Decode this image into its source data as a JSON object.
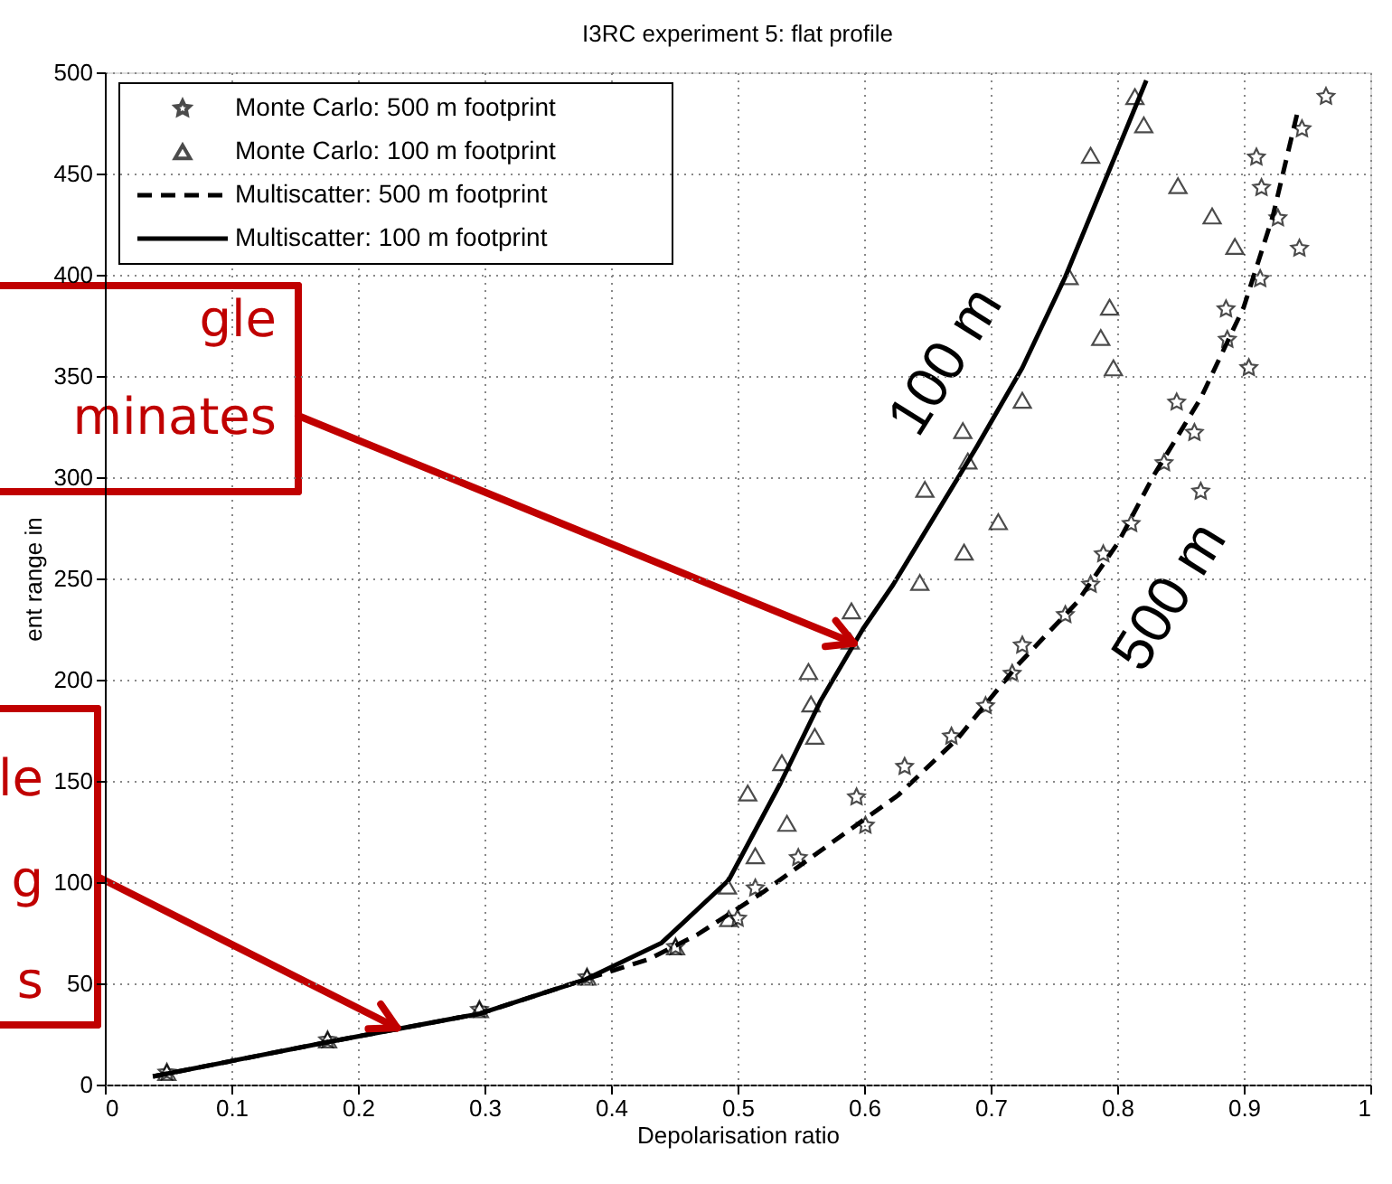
{
  "chart_data": {
    "type": "line",
    "title": "I3RC experiment 5: flat profile",
    "xlabel": "Depolarisation ratio",
    "ylabel": "ent range in",
    "xlim": [
      0,
      1
    ],
    "ylim": [
      0,
      500
    ],
    "xticks": [
      0,
      0.1,
      0.2,
      0.3,
      0.4,
      0.5,
      0.6,
      0.7,
      0.8,
      0.9,
      1
    ],
    "yticks": [
      0,
      50,
      100,
      150,
      200,
      250,
      300,
      350,
      400,
      450,
      500
    ],
    "grid": true,
    "legend": "top left",
    "series": [
      {
        "name": "Monte Carlo: 500 m footprint",
        "type": "scatter",
        "marker": "star",
        "color": "#000000",
        "x": [
          0.049,
          0.176,
          0.296,
          0.381,
          0.451,
          0.5,
          0.514,
          0.548,
          0.601,
          0.594,
          0.632,
          0.669,
          0.696,
          0.717,
          0.725,
          0.759,
          0.779,
          0.789,
          0.811,
          0.866,
          0.837,
          0.861,
          0.847,
          0.904,
          0.887,
          0.886,
          0.913,
          0.944,
          0.927,
          0.914,
          0.91,
          0.946,
          0.965
        ],
        "values": [
          6,
          22,
          37,
          53,
          68,
          82,
          97,
          112,
          128,
          142,
          157,
          172,
          187,
          203,
          217,
          232,
          247,
          262,
          277,
          293,
          307,
          322,
          337,
          354,
          368,
          383,
          398,
          413,
          428,
          443,
          458,
          472,
          488
        ]
      },
      {
        "name": "Monte Carlo: 100 m footprint",
        "type": "scatter",
        "marker": "triangle",
        "color": "#000000",
        "x": [
          0.049,
          0.176,
          0.296,
          0.381,
          0.451,
          0.493,
          0.492,
          0.514,
          0.539,
          0.508,
          0.535,
          0.561,
          0.558,
          0.556,
          0.589,
          0.59,
          0.644,
          0.679,
          0.706,
          0.648,
          0.682,
          0.678,
          0.725,
          0.797,
          0.787,
          0.794,
          0.762,
          0.893,
          0.875,
          0.848,
          0.779,
          0.821,
          0.814
        ],
        "values": [
          6,
          22,
          37,
          53,
          68,
          82,
          98,
          113,
          129,
          144,
          159,
          172,
          188,
          204,
          219,
          234,
          248,
          263,
          278,
          294,
          308,
          323,
          338,
          354,
          369,
          384,
          399,
          414,
          429,
          444,
          459,
          474,
          488
        ]
      },
      {
        "name": "Multiscatter: 500 m footprint",
        "line_style": "dashed",
        "color": "#000000",
        "x": [
          0.038,
          0.176,
          0.296,
          0.38,
          0.43,
          0.468,
          0.52,
          0.58,
          0.627,
          0.674,
          0.721,
          0.768,
          0.801,
          0.829,
          0.866,
          0.9,
          0.923,
          0.942
        ],
        "values": [
          4,
          21,
          35,
          52,
          62,
          74,
          95,
          122,
          143,
          171,
          207,
          238,
          268,
          301,
          339,
          384,
          429,
          479
        ]
      },
      {
        "name": "Multiscatter: 100 m footprint",
        "line_style": "solid",
        "color": "#000000",
        "x": [
          0.038,
          0.176,
          0.296,
          0.38,
          0.44,
          0.493,
          0.534,
          0.566,
          0.599,
          0.623,
          0.689,
          0.725,
          0.759,
          0.823
        ],
        "values": [
          4,
          21,
          35,
          52,
          70,
          101,
          149,
          190,
          225,
          247,
          315,
          354,
          399,
          496
        ]
      }
    ],
    "annotations": [
      {
        "text": "gle\nminates",
        "x": 0.592,
        "y": 218
      },
      {
        "text": "le\ng\ns",
        "x": 0.231,
        "y": 28
      },
      "100 m",
      "500 m"
    ]
  }
}
